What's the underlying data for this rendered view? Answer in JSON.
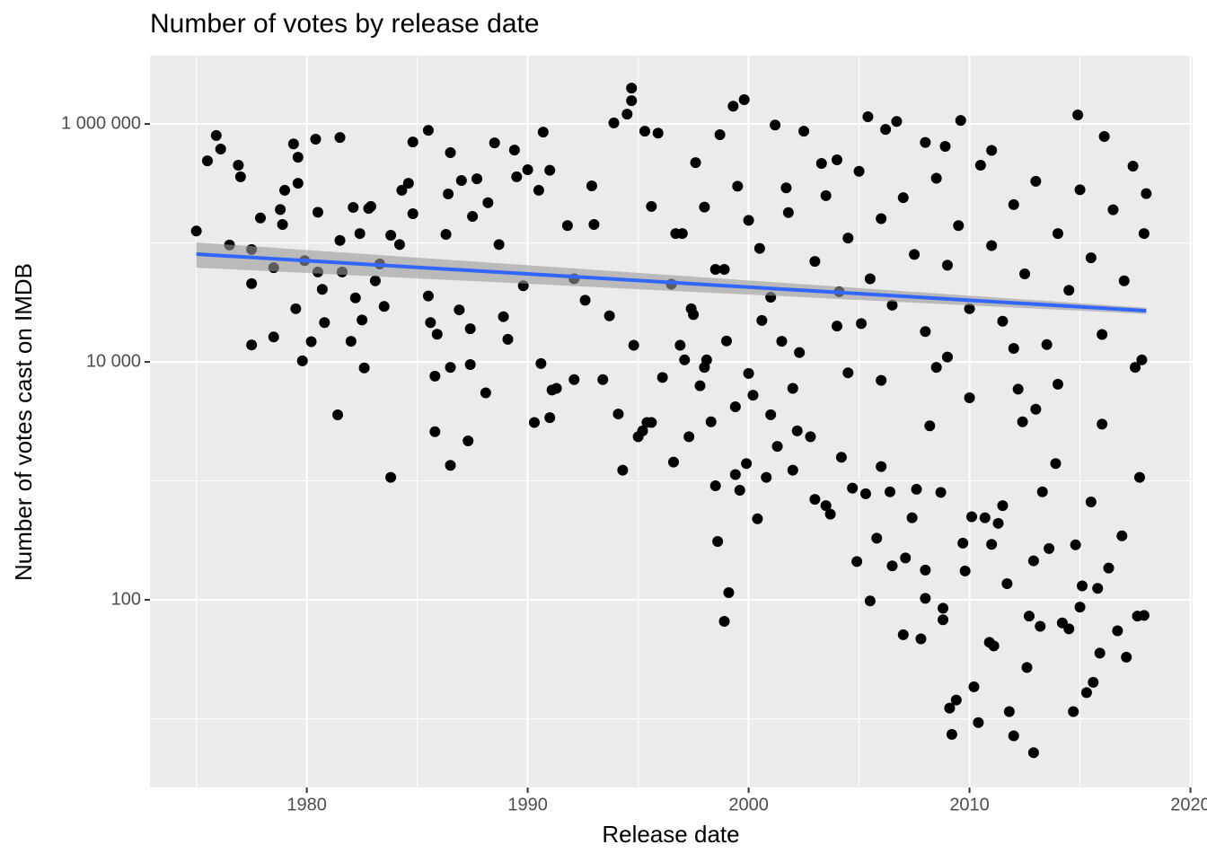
{
  "chart_data": {
    "type": "scatter",
    "title": "Number of votes by release date",
    "x_label": "Release date",
    "y_label": "Number of votes cast on IMDB",
    "xlim": [
      1972.9,
      2020.1
    ],
    "xticks": [
      1980,
      1990,
      2000,
      2010,
      2020
    ],
    "x_minor_ticks": [
      1975,
      1985,
      1995,
      2005,
      2015
    ],
    "ylim": [
      2.65,
      3750000
    ],
    "log_y": true,
    "yticks": [
      100,
      {
        "value": 10000,
        "label": "10 000"
      },
      {
        "value": 1000000,
        "label": "1 000 000"
      }
    ],
    "y_minor_ticks": [
      10,
      1000,
      100000
    ],
    "grid": true,
    "color": "#000000",
    "x": [
      1975.0,
      1975.5,
      1975.9,
      1976.1,
      1976.5,
      1976.9,
      1977.0,
      1977.5,
      1977.5,
      1977.5,
      1977.9,
      1978.5,
      1978.5,
      1978.8,
      1979.0,
      1978.9,
      1979.4,
      1979.6,
      1979.6,
      1979.5,
      1979.8,
      1979.9,
      1980.2,
      1980.4,
      1980.5,
      1980.5,
      1980.7,
      1980.8,
      1981.4,
      1981.5,
      1981.5,
      1981.6,
      1982.0,
      1982.1,
      1982.2,
      1982.4,
      1982.5,
      1982.6,
      1982.8,
      1982.9,
      1983.1,
      1983.3,
      1983.5,
      1983.8,
      1983.8,
      1984.2,
      1984.3,
      1984.6,
      1984.8,
      1984.8,
      1985.5,
      1985.5,
      1985.6,
      1985.8,
      1985.8,
      1985.9,
      1986.3,
      1986.4,
      1986.5,
      1986.5,
      1986.5,
      1986.9,
      1987.0,
      1987.3,
      1987.4,
      1987.4,
      1987.5,
      1987.7,
      1988.1,
      1988.2,
      1988.5,
      1988.7,
      1988.9,
      1989.1,
      1989.4,
      1989.5,
      1989.8,
      1990.0,
      1990.3,
      1990.5,
      1990.6,
      1990.7,
      1991.0,
      1991.0,
      1991.1,
      1991.3,
      1991.8,
      1992.1,
      1992.1,
      1992.6,
      1992.9,
      1993.0,
      1993.4,
      1993.7,
      1993.9,
      1994.1,
      1994.3,
      1994.5,
      1994.7,
      1994.7,
      1994.8,
      1995.0,
      1995.2,
      1995.3,
      1995.4,
      1995.6,
      1995.6,
      1995.9,
      1996.1,
      1996.6,
      1996.7,
      1996.9,
      1997.1,
      1997.3,
      1997.4,
      1997.6,
      1997.8,
      1998.1,
      1998.3,
      1998.5,
      1998.6,
      1998.7,
      1998.9,
      1998.9,
      1999.1,
      1999.3,
      1999.4,
      1999.4,
      1999.6,
      1999.8,
      1999.9,
      2000.0,
      2000.2,
      2000.4,
      2000.6,
      2000.8,
      2001.0,
      2001.2,
      2001.3,
      2001.5,
      2001.7,
      2002.0,
      2002.2,
      2002.5,
      2002.8,
      2003.0,
      2003.3,
      2003.5,
      2003.7,
      2004.1,
      2004.2,
      2004.5,
      2004.7,
      2004.9,
      2005.1,
      2005.3,
      2005.5,
      2005.4,
      2005.8,
      2006.0,
      2006.2,
      2006.4,
      2006.5,
      2006.7,
      2007.0,
      2007.1,
      2007.4,
      2007.6,
      2007.8,
      2008.0,
      2008.0,
      2008.2,
      2008.5,
      2008.7,
      2008.8,
      2008.8,
      2008.9,
      2009.1,
      2009.2,
      2009.4,
      2009.6,
      2009.7,
      2009.8,
      2010.2,
      2010.4,
      2010.1,
      2010.7,
      2010.9,
      2011.0,
      2011.1,
      2011.3,
      2011.5,
      2011.7,
      2011.8,
      2012.0,
      2012.2,
      2012.4,
      2012.6,
      2012.7,
      2012.9,
      2012.9,
      2013.2,
      2013.3,
      2013.6,
      2013.9,
      2014.2,
      2014.5,
      2014.7,
      2014.8,
      2014.9,
      2015.0,
      2015.1,
      2015.3,
      2015.5,
      2015.6,
      2015.8,
      2015.9,
      2016.1,
      2016.3,
      2016.7,
      2016.9,
      2017.1,
      2017.4,
      2017.6,
      2017.9,
      2017.7,
      2017.9,
      2017.8,
      1996.5,
      1997.0,
      1997.5,
      1998.0,
      1998.5,
      1999.0,
      1999.5,
      2000.5,
      2001.0,
      2001.8,
      2002.3,
      2003.0,
      2003.5,
      2004.0,
      2004.5,
      2005.0,
      2005.5,
      2006.0,
      2006.5,
      2007.0,
      2007.5,
      2008.0,
      2008.5,
      2009.0,
      2009.5,
      2010.0,
      2010.5,
      2011.0,
      2011.5,
      2012.0,
      2012.5,
      2013.0,
      2013.5,
      2014.0,
      2014.5,
      2015.0,
      2015.5,
      2016.0,
      2016.5,
      2017.0,
      2017.5,
      2018.0,
      2000.0,
      2002.0,
      2006.0,
      2010.0,
      2014.0,
      2009.0,
      1998.0,
      2004.0,
      2011.0,
      2008.0,
      2012.0,
      2016.0,
      2013.0
    ],
    "values": [
      126000,
      490000,
      800000,
      615000,
      96000,
      450000,
      360000,
      45500,
      13900,
      88000,
      162000,
      62000,
      16200,
      191000,
      277000,
      143000,
      680000,
      525000,
      317000,
      28000,
      10200,
      71000,
      14800,
      745000,
      181000,
      57000,
      40700,
      21400,
      3590,
      770000,
      105000,
      57000,
      14900,
      199000,
      34500,
      120000,
      22500,
      8900,
      195000,
      203000,
      48000,
      66500,
      29300,
      1070,
      116000,
      97000,
      277000,
      317000,
      176000,
      706000,
      885000,
      35800,
      21400,
      7600,
      2590,
      17100,
      118000,
      258000,
      1350,
      9000,
      574000,
      27400,
      335000,
      2170,
      9500,
      19000,
      167000,
      346000,
      5500,
      218000,
      693000,
      97000,
      24000,
      15500,
      604000,
      360000,
      43700,
      413000,
      3100,
      277000,
      9700,
      855000,
      3400,
      408000,
      5800,
      6000,
      140000,
      7100,
      50000,
      33000,
      302000,
      143000,
      7100,
      24400,
      1020000,
      3650,
      1230,
      1210000,
      2000000,
      1570000,
      13800,
      2350,
      2630,
      870000,
      3100,
      3100,
      203000,
      838000,
      7400,
      1440,
      120000,
      13800,
      10400,
      2350,
      28000,
      473000,
      6300,
      10400,
      3140,
      910,
      310,
      812000,
      66,
      60000,
      115,
      1410000,
      4200,
      1130,
      835,
      1600000,
      1400,
      155000,
      5250,
      480,
      22300,
      1070,
      3600,
      980000,
      1950,
      14900,
      290000,
      1230,
      2630,
      870000,
      2350,
      700,
      466000,
      620,
      525,
      38900,
      1580,
      8100,
      870,
      210,
      21000,
      780,
      98,
      1150000,
      330,
      1320,
      900000,
      810,
      193,
      1050000,
      51,
      225,
      490,
      850,
      47,
      178,
      103,
      2900,
      9000,
      800,
      68,
      85,
      648000,
      12.3,
      7.4,
      14.4,
      1070000,
      300,
      175,
      18.6,
      9.3,
      500,
      490,
      44,
      293,
      41,
      440,
      620,
      137,
      11.5,
      7.2,
      5900,
      3140,
      27,
      73,
      5.2,
      213,
      60,
      810,
      270,
      1400,
      64,
      57,
      11.5,
      290,
      1190000,
      87,
      131,
      16.6,
      665,
      20.3,
      125,
      35.7,
      785000,
      185,
      55,
      345,
      33,
      442000,
      73,
      74,
      1070,
      120000,
      10400,
      45000,
      120000,
      25000,
      200000,
      60000,
      15000,
      300000,
      90000,
      35000,
      180000,
      12000,
      70000,
      250000,
      20000,
      110000,
      400000,
      50000,
      160000,
      30000,
      240000,
      80000,
      18000,
      350000,
      65000,
      140000,
      28000,
      450000,
      95000,
      22000,
      210000,
      55000,
      330000,
      14000,
      120000,
      40000,
      280000,
      75000,
      17000,
      190000,
      48000,
      9000,
      260000,
      8000,
      6000,
      7000,
      5000,
      6500,
      11000,
      9000,
      500000,
      600000,
      700000,
      13000,
      3000,
      4000
    ],
    "trend": {
      "color": "#3366ff",
      "band_color": "#999999",
      "x": [
        1975,
        2018
      ],
      "values": [
        80500,
        26900
      ],
      "lower": [
        62000,
        25300
      ],
      "upper": [
        101000,
        28500
      ]
    }
  }
}
